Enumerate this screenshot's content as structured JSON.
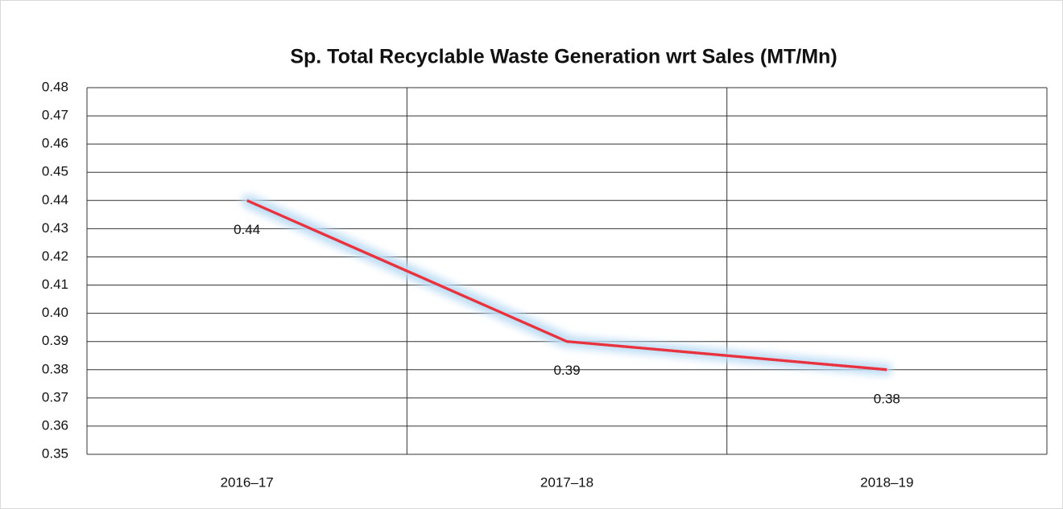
{
  "chart_data": {
    "type": "line",
    "title": "Sp. Total Recyclable Waste Generation wrt Sales (MT/Mn)",
    "categories": [
      "2016–17",
      "2017–18",
      "2018–19"
    ],
    "series": [
      {
        "name": "Sp. Total Recyclable Waste Generation wrt Sales",
        "color": "#e8323c",
        "values": [
          0.44,
          0.39,
          0.38
        ]
      }
    ],
    "ylim": [
      0.35,
      0.48
    ],
    "yticks": [
      0.35,
      0.36,
      0.37,
      0.38,
      0.39,
      {
        "value": 0.4,
        "label": "0.40"
      },
      0.41,
      0.42,
      0.43,
      0.44,
      0.45,
      0.46,
      0.47,
      0.48
    ],
    "grid": true
  }
}
